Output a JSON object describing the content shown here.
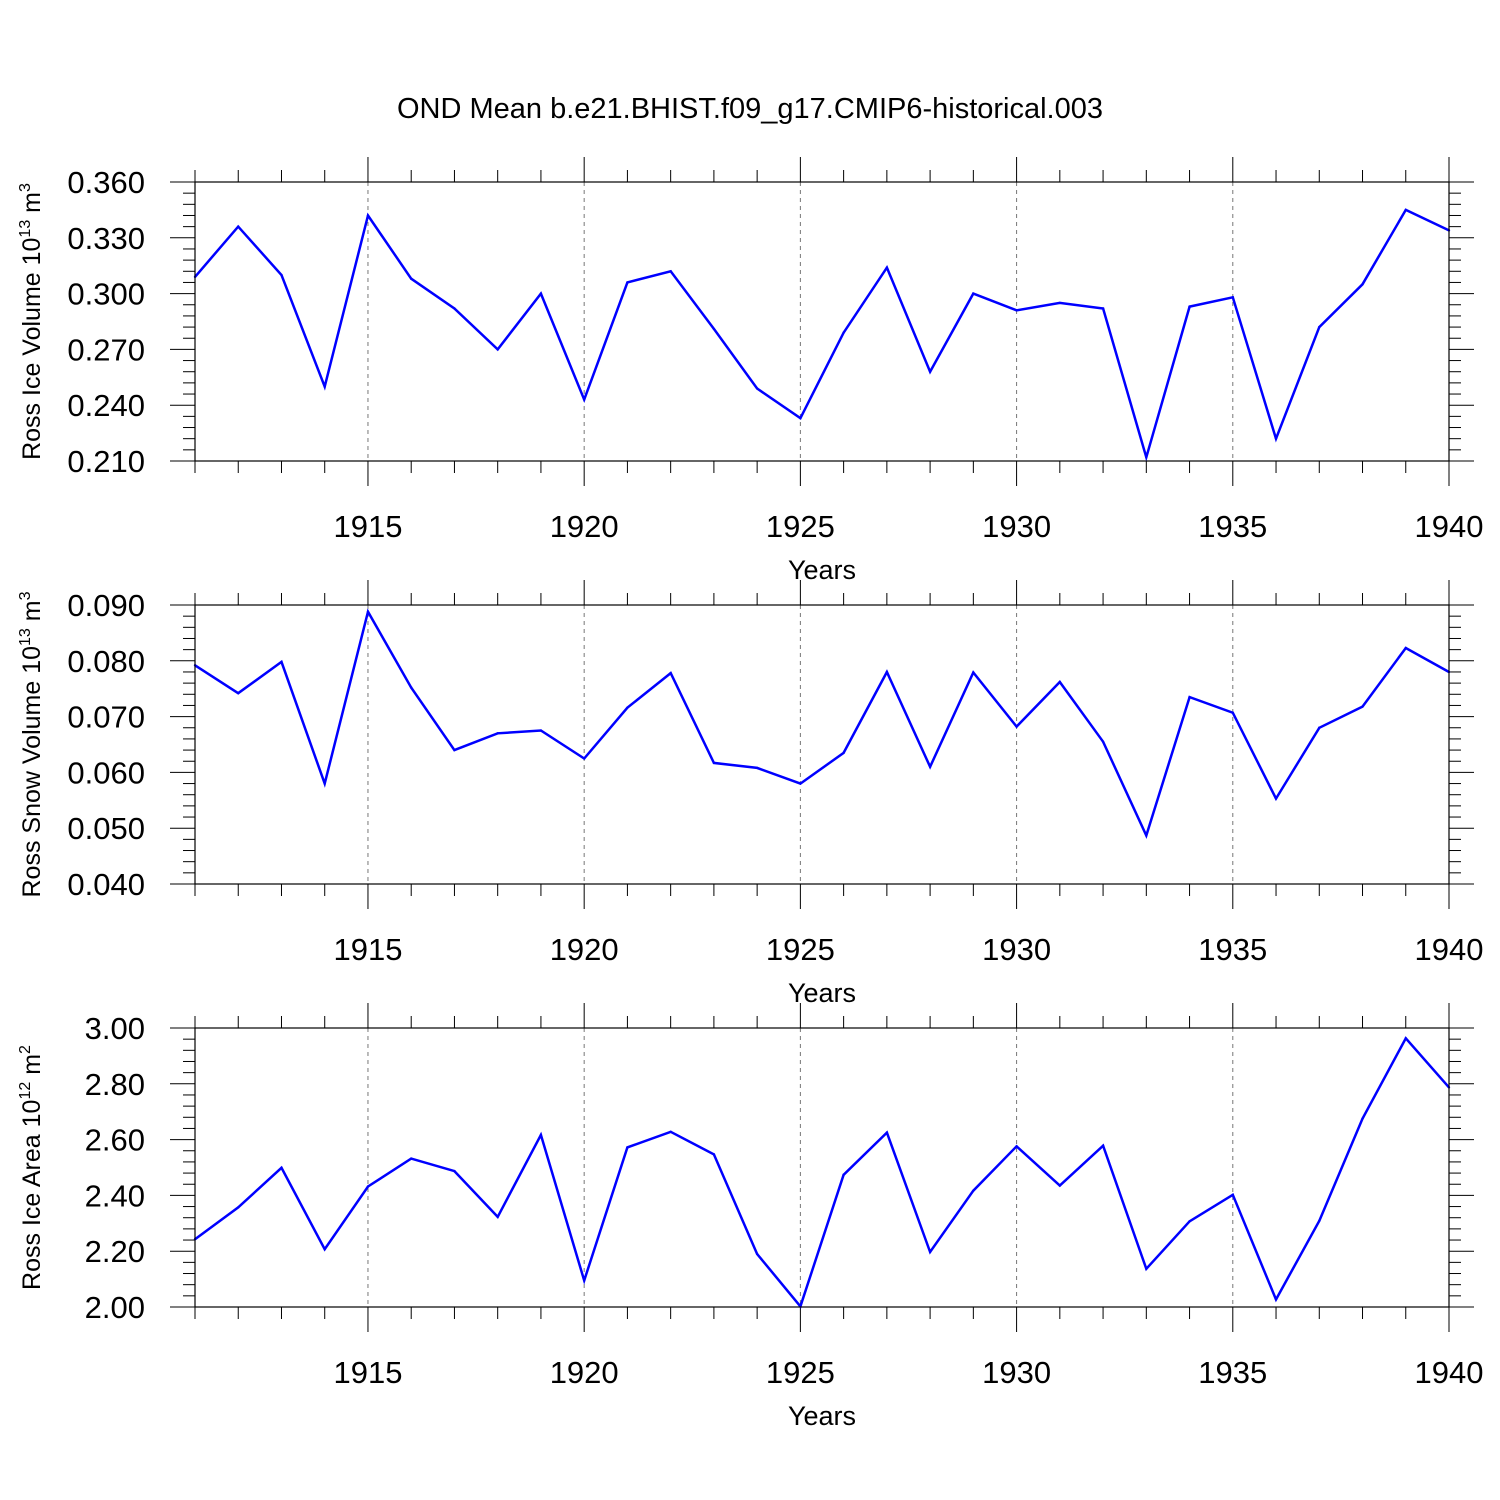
{
  "title": "OND Mean b.e21.BHIST.f09_g17.CMIP6-historical.003",
  "line_color": "#0000ff",
  "axis_color": "#000000",
  "grid_color": "#777777",
  "chart_data": [
    {
      "type": "line",
      "ylabel_main": "Ross Ice Volume 10",
      "ylabel_exp": "13",
      "ylabel_unit": " m",
      "ylabel_unit_exp": "3",
      "xlabel": "Years",
      "xlim": [
        1911,
        1940
      ],
      "ylim": [
        0.21,
        0.36
      ],
      "yticks": [
        0.21,
        0.24,
        0.27,
        0.3,
        0.33,
        0.36
      ],
      "ytick_labels": [
        "0.210",
        "0.240",
        "0.270",
        "0.300",
        "0.330",
        "0.360"
      ],
      "xticks": [
        1915,
        1920,
        1925,
        1930,
        1935,
        1940
      ],
      "xtick_labels": [
        "1915",
        "1920",
        "1925",
        "1930",
        "1935",
        "1940"
      ],
      "x": [
        1911,
        1912,
        1913,
        1914,
        1915,
        1916,
        1917,
        1918,
        1919,
        1920,
        1921,
        1922,
        1923,
        1924,
        1925,
        1926,
        1927,
        1928,
        1929,
        1930,
        1931,
        1932,
        1933,
        1934,
        1935,
        1936,
        1937,
        1938,
        1939,
        1940
      ],
      "y": [
        0.309,
        0.336,
        0.31,
        0.25,
        0.342,
        0.308,
        0.292,
        0.27,
        0.3,
        0.243,
        0.306,
        0.312,
        0.281,
        0.249,
        0.233,
        0.279,
        0.314,
        0.258,
        0.3,
        0.291,
        0.295,
        0.292,
        0.212,
        0.293,
        0.298,
        0.222,
        0.282,
        0.305,
        0.345,
        0.334
      ]
    },
    {
      "type": "line",
      "ylabel_main": "Ross Snow Volume 10",
      "ylabel_exp": "13",
      "ylabel_unit": " m",
      "ylabel_unit_exp": "3",
      "xlabel": "Years",
      "xlim": [
        1911,
        1940
      ],
      "ylim": [
        0.04,
        0.09
      ],
      "yticks": [
        0.04,
        0.05,
        0.06,
        0.07,
        0.08,
        0.09
      ],
      "ytick_labels": [
        "0.040",
        "0.050",
        "0.060",
        "0.070",
        "0.080",
        "0.090"
      ],
      "xticks": [
        1915,
        1920,
        1925,
        1930,
        1935,
        1940
      ],
      "xtick_labels": [
        "1915",
        "1920",
        "1925",
        "1930",
        "1935",
        "1940"
      ],
      "x": [
        1911,
        1912,
        1913,
        1914,
        1915,
        1916,
        1917,
        1918,
        1919,
        1920,
        1921,
        1922,
        1923,
        1924,
        1925,
        1926,
        1927,
        1928,
        1929,
        1930,
        1931,
        1932,
        1933,
        1934,
        1935,
        1936,
        1937,
        1938,
        1939,
        1940
      ],
      "y": [
        0.0792,
        0.0742,
        0.0798,
        0.058,
        0.0888,
        0.0752,
        0.064,
        0.067,
        0.0675,
        0.0625,
        0.0716,
        0.0778,
        0.0617,
        0.0608,
        0.058,
        0.0635,
        0.078,
        0.061,
        0.0779,
        0.0682,
        0.0762,
        0.0655,
        0.0487,
        0.0735,
        0.0707,
        0.0553,
        0.068,
        0.0718,
        0.0823,
        0.078
      ]
    },
    {
      "type": "line",
      "ylabel_main": "Ross Ice Area 10",
      "ylabel_exp": "12",
      "ylabel_unit": " m",
      "ylabel_unit_exp": "2",
      "xlabel": "Years",
      "xlim": [
        1911,
        1940
      ],
      "ylim": [
        2.0,
        3.0
      ],
      "yticks": [
        2.0,
        2.2,
        2.4,
        2.6,
        2.8,
        3.0
      ],
      "ytick_labels": [
        "2.00",
        "2.20",
        "2.40",
        "2.60",
        "2.80",
        "3.00"
      ],
      "xticks": [
        1915,
        1920,
        1925,
        1930,
        1935,
        1940
      ],
      "xtick_labels": [
        "1915",
        "1920",
        "1925",
        "1930",
        "1935",
        "1940"
      ],
      "x": [
        1911,
        1912,
        1913,
        1914,
        1915,
        1916,
        1917,
        1918,
        1919,
        1920,
        1921,
        1922,
        1923,
        1924,
        1925,
        1926,
        1927,
        1928,
        1929,
        1930,
        1931,
        1932,
        1933,
        1934,
        1935,
        1936,
        1937,
        1938,
        1939,
        1940
      ],
      "y": [
        2.243,
        2.357,
        2.499,
        2.207,
        2.432,
        2.532,
        2.487,
        2.323,
        2.617,
        2.095,
        2.572,
        2.628,
        2.547,
        2.19,
        2.002,
        2.474,
        2.625,
        2.197,
        2.417,
        2.576,
        2.435,
        2.578,
        2.137,
        2.307,
        2.402,
        2.027,
        2.309,
        2.675,
        2.963,
        2.787
      ]
    }
  ]
}
